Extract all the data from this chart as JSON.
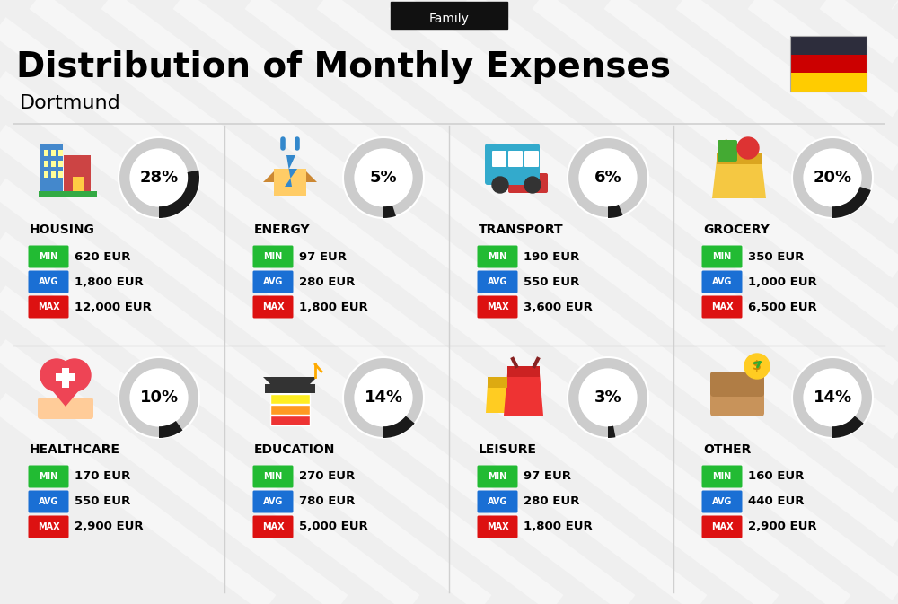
{
  "title": "Distribution of Monthly Expenses",
  "subtitle": "Dortmund",
  "tag": "Family",
  "bg_color": "#efefef",
  "categories": [
    {
      "name": "HOUSING",
      "pct": 28,
      "min": "620 EUR",
      "avg": "1,800 EUR",
      "max": "12,000 EUR"
    },
    {
      "name": "ENERGY",
      "pct": 5,
      "min": "97 EUR",
      "avg": "280 EUR",
      "max": "1,800 EUR"
    },
    {
      "name": "TRANSPORT",
      "pct": 6,
      "min": "190 EUR",
      "avg": "550 EUR",
      "max": "3,600 EUR"
    },
    {
      "name": "GROCERY",
      "pct": 20,
      "min": "350 EUR",
      "avg": "1,000 EUR",
      "max": "6,500 EUR"
    },
    {
      "name": "HEALTHCARE",
      "pct": 10,
      "min": "170 EUR",
      "avg": "550 EUR",
      "max": "2,900 EUR"
    },
    {
      "name": "EDUCATION",
      "pct": 14,
      "min": "270 EUR",
      "avg": "780 EUR",
      "max": "5,000 EUR"
    },
    {
      "name": "LEISURE",
      "pct": 3,
      "min": "97 EUR",
      "avg": "280 EUR",
      "max": "1,800 EUR"
    },
    {
      "name": "OTHER",
      "pct": 14,
      "min": "160 EUR",
      "avg": "440 EUR",
      "max": "2,900 EUR"
    }
  ],
  "color_min": "#22bb33",
  "color_avg": "#1a6fd4",
  "color_max": "#dd1111",
  "donut_dark": "#1a1a1a",
  "donut_light": "#cccccc",
  "flag_colors": [
    "#2d2d3c",
    "#cc0000",
    "#ffcc00"
  ],
  "stripe_color": "#ffffff",
  "divider_color": "#d0d0d0",
  "tag_bg": "#111111",
  "title_size": 28,
  "subtitle_size": 16,
  "cat_name_size": 10,
  "val_size": 9.5,
  "label_size": 7,
  "pct_size": 13
}
